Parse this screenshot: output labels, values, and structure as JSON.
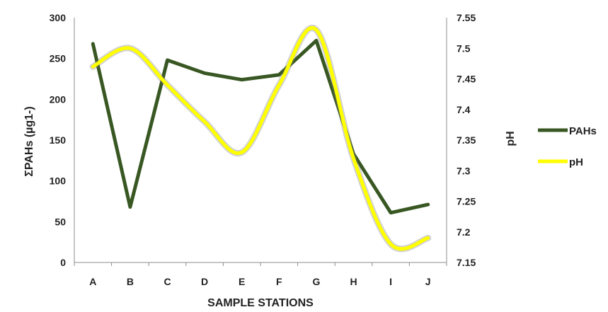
{
  "chart_data": {
    "type": "line",
    "xlabel": "SAMPLE STATIONS",
    "ylabel_left": "ΣPAHs (µg1-)",
    "ylabel_right": "pH",
    "categories": [
      "A",
      "B",
      "C",
      "D",
      "E",
      "F",
      "G",
      "H",
      "I",
      "J"
    ],
    "y_left": {
      "min": 0,
      "max": 300,
      "ticks": [
        0,
        50,
        100,
        150,
        200,
        250,
        300
      ]
    },
    "y_right": {
      "min": 7.15,
      "max": 7.55,
      "ticks": [
        "7.15",
        "7.2",
        "7.25",
        "7.3",
        "7.35",
        "7.4",
        "7.45",
        "7.5",
        "7.55"
      ]
    },
    "series": [
      {
        "name": "PAHs",
        "axis": "left",
        "color": "#385723",
        "smooth": false,
        "values": [
          268,
          68,
          248,
          232,
          224,
          230,
          272,
          133,
          61,
          71
        ]
      },
      {
        "name": "pH",
        "axis": "right",
        "color": "#ffff00",
        "smooth": true,
        "values": [
          7.47,
          7.5,
          7.44,
          7.38,
          7.33,
          7.44,
          7.53,
          7.32,
          7.18,
          7.19
        ]
      }
    ],
    "grid": false,
    "legend_position": "right"
  }
}
